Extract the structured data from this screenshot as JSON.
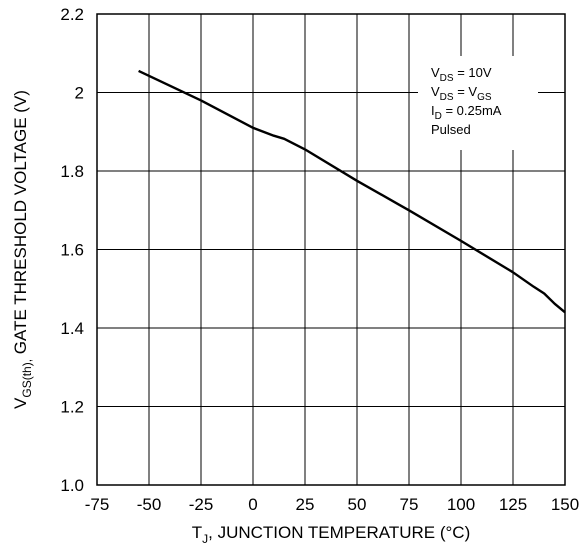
{
  "chart_data": {
    "type": "line",
    "xlabel": "T",
    "xlabel_sub": "J",
    "xlabel_rest": ", JUNCTION TEMPERATURE (°C)",
    "ylabel": "V",
    "ylabel_sub": "GS(th),",
    "ylabel_rest": " GATE THRESHOLD VOLTAGE (V)",
    "xlim": [
      -75,
      150
    ],
    "ylim": [
      1.0,
      2.2
    ],
    "x_ticks": [
      -75,
      -50,
      -25,
      0,
      25,
      50,
      75,
      100,
      125,
      150
    ],
    "x_tick_labels": [
      "-75",
      "-50",
      "-25",
      "0",
      "25",
      "50",
      "75",
      "100",
      "125",
      "150"
    ],
    "y_ticks": [
      1.0,
      1.2,
      1.4,
      1.6,
      1.8,
      2.0,
      2.2
    ],
    "y_tick_labels": [
      "1.0",
      "1.2",
      "1.4",
      "1.6",
      "1.8",
      "2",
      "2.2"
    ],
    "grid": true,
    "series": [
      {
        "x": [
          -55,
          -25,
          0,
          10,
          15,
          25,
          50,
          70,
          75,
          100,
          125,
          135,
          140,
          145,
          150
        ],
        "y": [
          2.055,
          1.98,
          1.91,
          1.89,
          1.882,
          1.855,
          1.775,
          1.715,
          1.7,
          1.622,
          1.542,
          1.505,
          1.488,
          1.462,
          1.44
        ]
      }
    ],
    "annotation": {
      "lines": [
        {
          "base": "V",
          "sub": "DS",
          "rest": " = 10V"
        },
        {
          "base": "V",
          "sub": "DS",
          "rest": " = V",
          "sub2": "GS"
        },
        {
          "base": "I",
          "sub": "D",
          "rest": " = 0.25mA"
        },
        {
          "base": "Pulsed",
          "sub": "",
          "rest": ""
        }
      ]
    }
  }
}
